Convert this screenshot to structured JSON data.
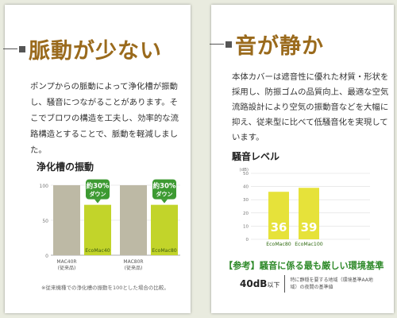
{
  "left": {
    "heading": "脈動が少ない",
    "body": "ポンプからの脈動によって浄化槽が振動し、騒音につながることがあります。そこでブロワの構造を工夫し、効率的な流路構造とすることで、脈動を軽減しました。",
    "chart_title": "浄化槽の振動",
    "footnote": "※従来機種での浄化槽の振動を100とした場合の比較。",
    "badge_line1": "約30%",
    "badge_line2": "ダウン"
  },
  "right": {
    "heading": "音が静か",
    "body": "本体カバーは遮音性に優れた材質・形状を採用し、防振ゴムの品質向上、最適な空気流路設計により空気の振動音などを大幅に抑え、従来型に比べて低騒音化を実現しています。",
    "chart_title": "騒音レベル",
    "standard_title": "【参考】騒音に係る最も厳しい環境基準",
    "standard_value": "40dB",
    "standard_unit": "以下",
    "standard_desc": "特に静穏を要する地域（環境基準AA地域）の夜間の基準値"
  },
  "colors": {
    "accent_green": "#c2d42a",
    "gray_bar": "#bdb9a5",
    "heading_brown": "#9a6a1c",
    "badge_green": "#3d9a32",
    "standard_green": "#2f8a2a",
    "chart2_bar": "#e6e23a"
  },
  "chart_data": [
    {
      "type": "bar",
      "title": "浄化槽の振動",
      "categories": [
        "MAC40R\n(従来品)",
        "EcoMac40",
        "MAC80R\n(従来品)",
        "EcoMac80"
      ],
      "values": [
        100,
        72,
        100,
        72
      ],
      "yticks": [
        0,
        50,
        100
      ],
      "ylim": [
        0,
        100
      ]
    },
    {
      "type": "bar",
      "title": "騒音レベル",
      "categories": [
        "EcoMac80",
        "EcoMac100"
      ],
      "values": [
        36,
        39
      ],
      "yunit": "(dB)",
      "yticks": [
        0,
        10,
        20,
        30,
        40,
        50
      ],
      "ylim": [
        0,
        50
      ]
    }
  ]
}
